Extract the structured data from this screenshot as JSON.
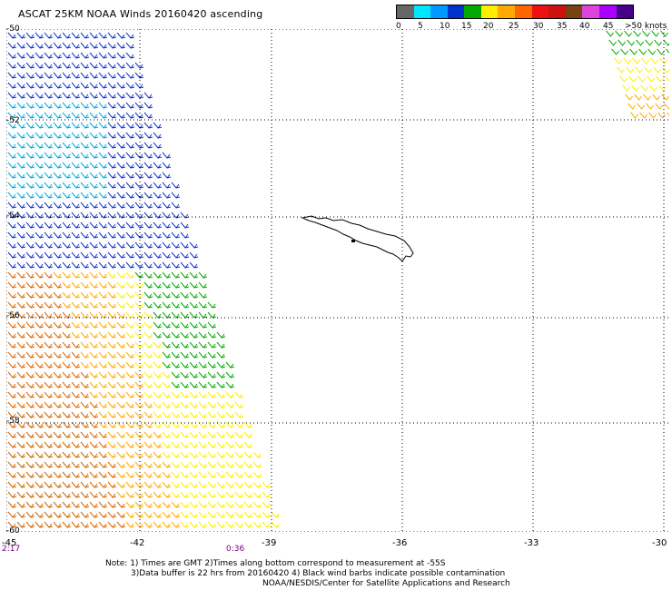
{
  "title": "ASCAT 25KM NOAA Winds 20160420 ascending",
  "legend": {
    "colors": [
      "#666666",
      "#00e6ff",
      "#0099ff",
      "#0033cc",
      "#00aa00",
      "#ffee00",
      "#ffaa00",
      "#ff6600",
      "#ee1111",
      "#cc1111",
      "#774411",
      "#dd44dd",
      "#aa00ff",
      "#440088"
    ],
    "labels": [
      "0",
      "5",
      "10",
      "15",
      "20",
      "25",
      "30",
      "35",
      "40",
      "45",
      ">50 knots"
    ]
  },
  "map": {
    "lat_labels": [
      "-50",
      "-52",
      "-54",
      "-56",
      "-58",
      "-60"
    ],
    "lon_labels": [
      "-45",
      "-42",
      "-39",
      "-36",
      "-33",
      "-30"
    ],
    "time_labels": [
      "2:17",
      "0:36"
    ],
    "island": "South Georgia",
    "barb_color_zones": [
      "blue",
      "cyan",
      "green",
      "yellow",
      "orange",
      "brown"
    ]
  },
  "notes": {
    "line1": "Note: 1) Times are GMT  2)Times along bottom correspond to measurement at -55S",
    "line2": "3)Data buffer is 22 hrs from 20160420  4) Black wind barbs indicate possible contamination",
    "line3": "NOAA/NESDIS/Center for Satellite Applications and Research"
  }
}
